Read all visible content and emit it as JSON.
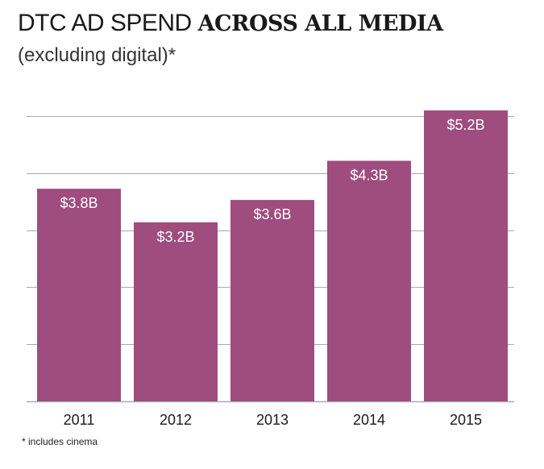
{
  "colors": {
    "bar": "#9f4c7e",
    "grid": "#a9a9a9",
    "label": "#ffffff",
    "tick": "#1a1a1a"
  },
  "header": {
    "title_light": "DTC AD SPEND",
    "title_bold": "ACROSS ALL MEDIA",
    "subtitle": "(excluding digital)*"
  },
  "footnote": "* includes cinema",
  "chart_data": {
    "type": "bar",
    "title": "DTC AD SPEND ACROSS ALL MEDIA",
    "subtitle": "(excluding digital)*",
    "categories": [
      "2011",
      "2012",
      "2013",
      "2014",
      "2015"
    ],
    "values": [
      3.8,
      3.2,
      3.6,
      4.3,
      5.2
    ],
    "data_labels": [
      "$3.8B",
      "$3.2B",
      "$3.6B",
      "$4.3B",
      "$5.2B"
    ],
    "unit": "$B",
    "xlabel": "",
    "ylabel": "",
    "ylim": [
      0,
      5.1
    ],
    "gridlines": [
      0,
      1.02,
      2.04,
      3.06,
      4.08,
      5.1
    ],
    "grid": true,
    "legend": "none"
  }
}
